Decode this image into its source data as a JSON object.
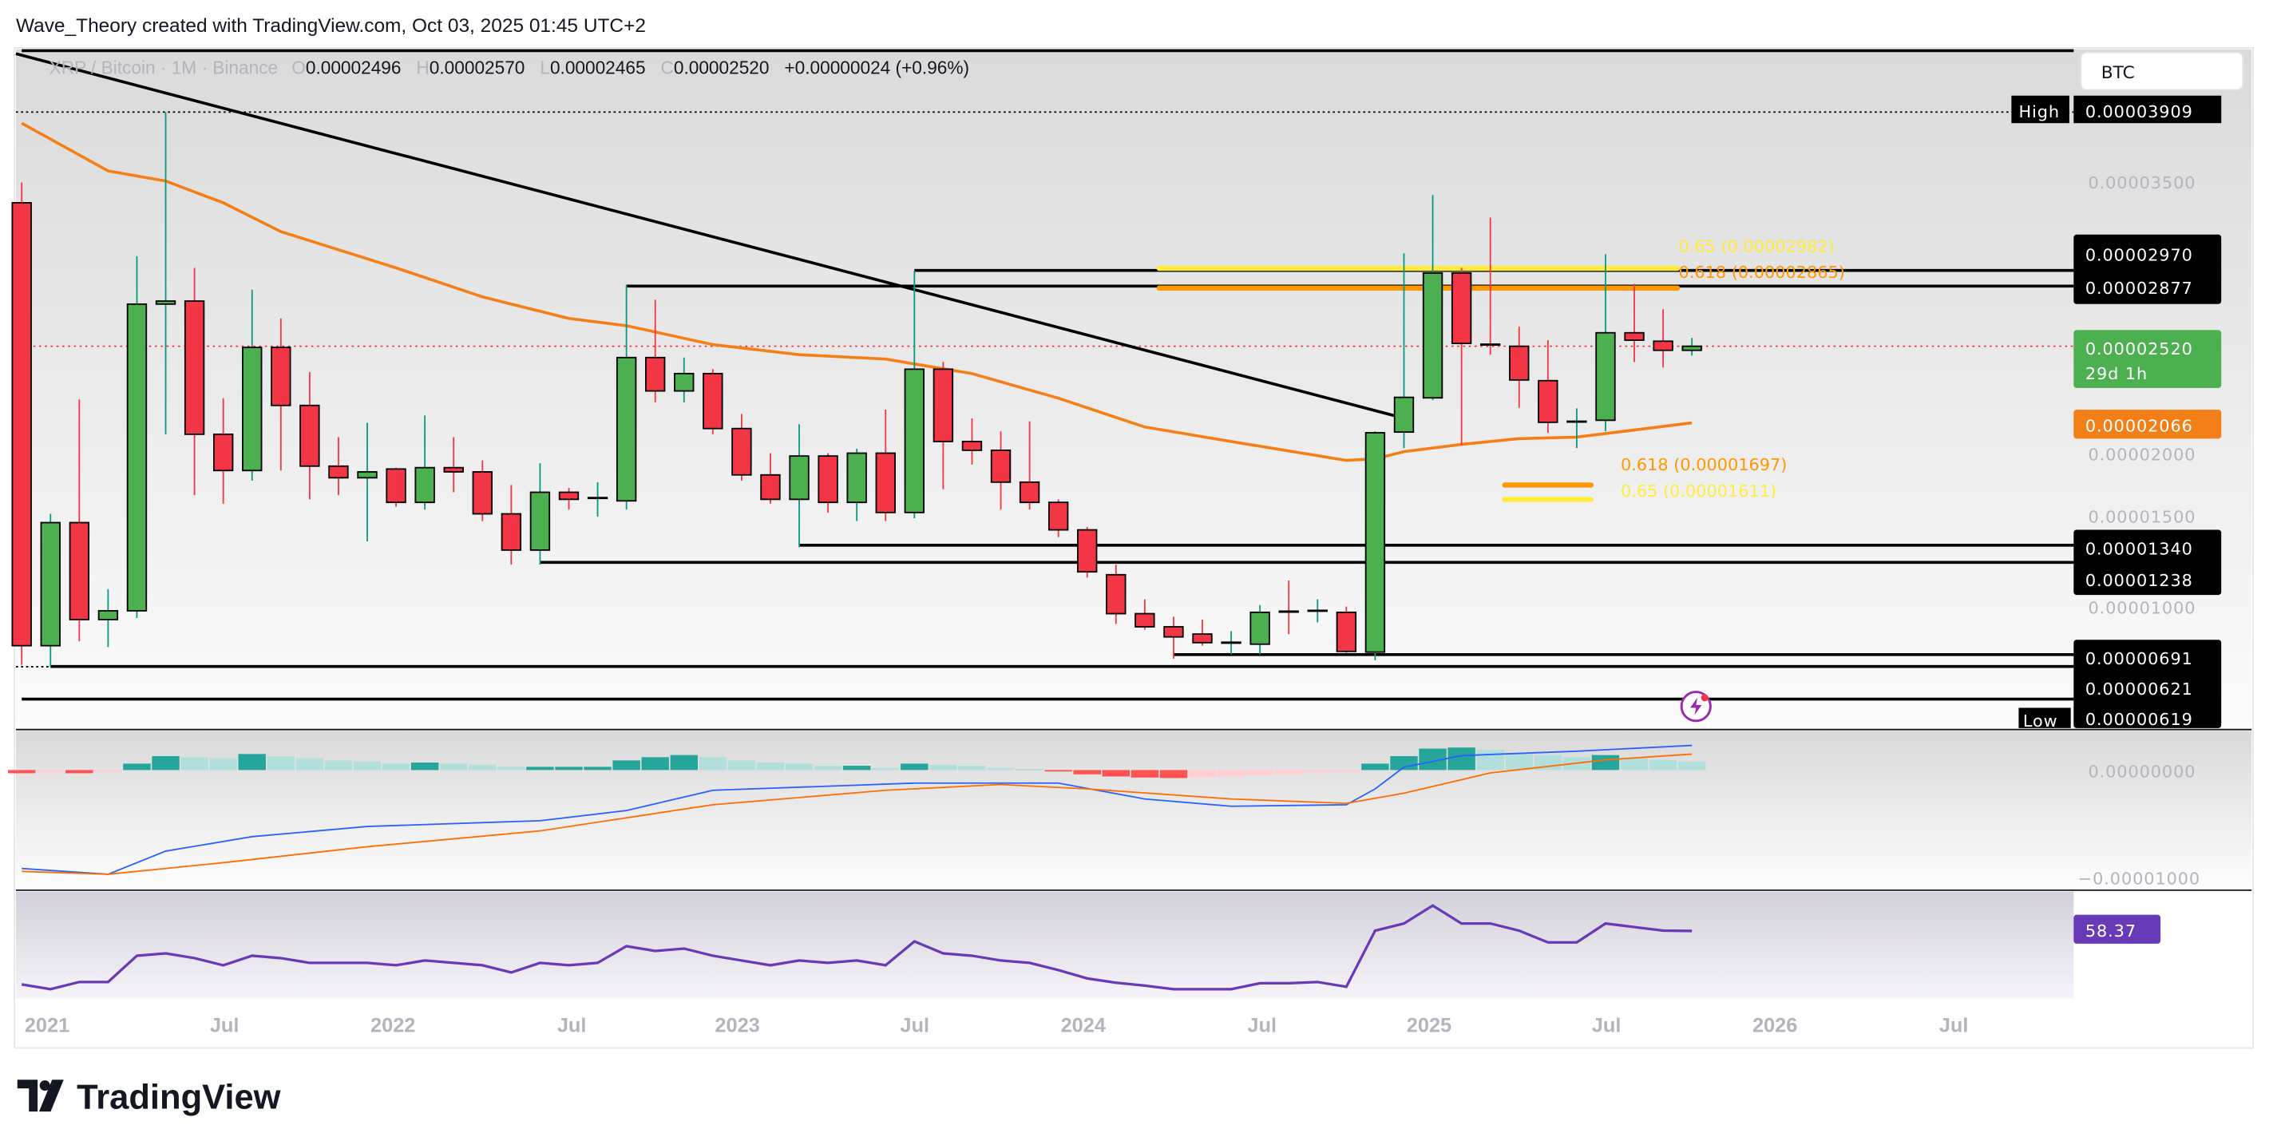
{
  "header": {
    "attribution": "Wave_Theory created with TradingView.com, Oct 03, 2025 01:45 UTC+2"
  },
  "legend": {
    "symbol": "XRP / Bitcoin · 1M · Binance",
    "open_label": "O",
    "open": "0.00002496",
    "high_label": "H",
    "high": "0.00002570",
    "low_label": "L",
    "low": "0.00002465",
    "close_label": "C",
    "close": "0.00002520",
    "change": "+0.00000024 (+0.96%)"
  },
  "currency_button": "BTC",
  "price_axis": {
    "ticks": [
      "0.00003500",
      "0.00002000",
      "0.00001500",
      "0.00001000"
    ],
    "high_label": "High",
    "high_value": "0.00003909",
    "low_label": "Low",
    "low_value": "0.00000619",
    "level_tags": [
      "0.00002970",
      "0.00002877",
      "0.00001340",
      "0.00001238",
      "0.00000691",
      "0.00000621"
    ],
    "last_price": "0.00002520",
    "countdown": "29d 1h",
    "ema_value": "0.00002066"
  },
  "macd_axis": {
    "ticks": [
      "0.00000000",
      "−0.00001000"
    ]
  },
  "rsi": {
    "value": "58.37"
  },
  "time_axis": [
    "2021",
    "Jul",
    "2022",
    "Jul",
    "2023",
    "Jul",
    "2024",
    "Jul",
    "2025",
    "Jul",
    "2026",
    "Jul"
  ],
  "fib_labels": {
    "upper_065": "0.65 (0.00002982)",
    "upper_0618": "0.618 (0.00002865)",
    "lower_0618": "0.618 (0.00001697)",
    "lower_065": "0.65 (0.00001611)"
  },
  "footer": {
    "brand": "TradingView"
  },
  "colors": {
    "up": "#4caf50",
    "down": "#f23645",
    "up_wick": "#089981",
    "down_wick": "#f23645",
    "ema": "#f57f17",
    "fib_yellow": "#ffeb3b",
    "fib_orange": "#ff9800",
    "macd": "#2962ff",
    "signal": "#ff6d00",
    "rsi": "#673ab7",
    "hist_up_strong": "#26a69a",
    "hist_up_weak": "#b2dfdb",
    "hist_down_strong": "#ff5252",
    "hist_down_weak": "#ffcdd2"
  },
  "chart_data": {
    "type": "candlestick",
    "interval": "1M",
    "price_range": [
      4e-06,
      4.25e-05
    ],
    "grid": false,
    "candles_columns": [
      "month",
      "open",
      "high",
      "low",
      "close"
    ],
    "candles": [
      [
        "2020-12",
        3.371e-05,
        3.491e-05,
        6.3e-06,
        7.44e-06
      ],
      [
        "2021-01",
        7.44e-06,
        1.526e-05,
        6.19e-06,
        1.474e-05
      ],
      [
        "2021-02",
        1.474e-05,
        2.204e-05,
        7.7e-06,
        8.99e-06
      ],
      [
        "2021-03",
        8.99e-06,
        1.079e-05,
        7.36e-06,
        9.51e-06
      ],
      [
        "2021-04",
        9.51e-06,
        3.054e-05,
        9.08e-06,
        2.77e-05
      ],
      [
        "2021-05",
        2.77e-05,
        3.909e-05,
        1.998e-05,
        2.788e-05
      ],
      [
        "2021-06",
        2.788e-05,
        2.985e-05,
        1.637e-05,
        1.998e-05
      ],
      [
        "2021-07",
        1.998e-05,
        2.212e-05,
        1.586e-05,
        1.783e-05
      ],
      [
        "2021-08",
        1.783e-05,
        2.856e-05,
        1.723e-05,
        2.513e-05
      ],
      [
        "2021-09",
        2.513e-05,
        2.685e-05,
        1.783e-05,
        2.169e-05
      ],
      [
        "2021-10",
        2.169e-05,
        2.367e-05,
        1.612e-05,
        1.809e-05
      ],
      [
        "2021-11",
        1.809e-05,
        1.981e-05,
        1.637e-05,
        1.74e-05
      ],
      [
        "2021-12",
        1.74e-05,
        2.066e-05,
        1.363e-05,
        1.775e-05
      ],
      [
        "2022-01",
        1.792e-05,
        1.8e-05,
        1.569e-05,
        1.594e-05
      ],
      [
        "2022-02",
        1.594e-05,
        2.109e-05,
        1.551e-05,
        1.8e-05
      ],
      [
        "2022-03",
        1.8e-05,
        1.981e-05,
        1.654e-05,
        1.775e-05
      ],
      [
        "2022-04",
        1.775e-05,
        1.843e-05,
        1.483e-05,
        1.526e-05
      ],
      [
        "2022-05",
        1.526e-05,
        1.697e-05,
        1.225e-05,
        1.311e-05
      ],
      [
        "2022-06",
        1.311e-05,
        1.826e-05,
        1.225e-05,
        1.654e-05
      ],
      [
        "2022-07",
        1.654e-05,
        1.68e-05,
        1.551e-05,
        1.612e-05
      ],
      [
        "2022-08",
        1.62e-05,
        1.714e-05,
        1.509e-05,
        1.62e-05
      ],
      [
        "2022-09",
        1.603e-05,
        2.882e-05,
        1.551e-05,
        2.453e-05
      ],
      [
        "2022-10",
        2.453e-05,
        2.796e-05,
        2.187e-05,
        2.255e-05
      ],
      [
        "2022-11",
        2.255e-05,
        2.453e-05,
        2.187e-05,
        2.358e-05
      ],
      [
        "2022-12",
        2.358e-05,
        2.384e-05,
        1.998e-05,
        2.032e-05
      ],
      [
        "2023-01",
        2.032e-05,
        2.118e-05,
        1.723e-05,
        1.757e-05
      ],
      [
        "2023-02",
        1.757e-05,
        1.886e-05,
        1.586e-05,
        1.612e-05
      ],
      [
        "2023-03",
        1.612e-05,
        2.058e-05,
        1.328e-05,
        1.869e-05
      ],
      [
        "2023-04",
        1.869e-05,
        1.886e-05,
        1.534e-05,
        1.594e-05
      ],
      [
        "2023-05",
        1.594e-05,
        1.912e-05,
        1.483e-05,
        1.886e-05
      ],
      [
        "2023-06",
        1.886e-05,
        2.144e-05,
        1.483e-05,
        1.534e-05
      ],
      [
        "2023-07",
        1.534e-05,
        2.968e-05,
        1.5e-05,
        2.384e-05
      ],
      [
        "2023-08",
        2.384e-05,
        2.427e-05,
        1.672e-05,
        1.955e-05
      ],
      [
        "2023-09",
        1.955e-05,
        2.092e-05,
        1.818e-05,
        1.903e-05
      ],
      [
        "2023-10",
        1.903e-05,
        2.015e-05,
        1.551e-05,
        1.714e-05
      ],
      [
        "2023-11",
        1.714e-05,
        2.075e-05,
        1.551e-05,
        1.594e-05
      ],
      [
        "2023-12",
        1.594e-05,
        1.612e-05,
        1.388e-05,
        1.431e-05
      ],
      [
        "2024-01",
        1.431e-05,
        1.448e-05,
        1.148e-05,
        1.182e-05
      ],
      [
        "2024-02",
        1.165e-05,
        1.225e-05,
        8.73e-06,
        9.34e-06
      ],
      [
        "2024-03",
        9.34e-06,
        1.019e-05,
        8.39e-06,
        8.56e-06
      ],
      [
        "2024-04",
        8.56e-06,
        9.16e-06,
        6.67e-06,
        7.96e-06
      ],
      [
        "2024-05",
        8.13e-06,
        8.99e-06,
        7.44e-06,
        7.62e-06
      ],
      [
        "2024-06",
        7.62e-06,
        8.3e-06,
        6.93e-06,
        7.62e-06
      ],
      [
        "2024-07",
        7.53e-06,
        9.85e-06,
        6.93e-06,
        9.42e-06
      ],
      [
        "2024-08",
        9.51e-06,
        1.131e-05,
        8.13e-06,
        9.46e-06
      ],
      [
        "2024-09",
        9.46e-06,
        1.019e-05,
        8.82e-06,
        9.51e-06
      ],
      [
        "2024-10",
        9.42e-06,
        9.76e-06,
        7.02e-06,
        7.1e-06
      ],
      [
        "2024-11",
        7.06e-06,
        2.015e-05,
        6.58e-06,
        2.007e-05
      ],
      [
        "2024-12",
        2.011e-05,
        3.071e-05,
        1.916e-05,
        2.217e-05
      ],
      [
        "2025-01",
        2.214e-05,
        3.417e-05,
        2.2e-05,
        2.954e-05
      ],
      [
        "2025-02",
        2.954e-05,
        2.985e-05,
        1.932e-05,
        2.537e-05
      ],
      [
        "2025-03",
        2.537e-05,
        3.283e-05,
        2.47e-05,
        2.53e-05
      ],
      [
        "2025-04",
        2.52e-05,
        2.636e-05,
        2.155e-05,
        2.32e-05
      ],
      [
        "2025-05",
        2.316e-05,
        2.556e-05,
        2.007e-05,
        2.069e-05
      ],
      [
        "2025-06",
        2.066e-05,
        2.152e-05,
        1.916e-05,
        2.073e-05
      ],
      [
        "2025-07",
        2.081e-05,
        3.066e-05,
        2.016e-05,
        2.6e-05
      ],
      [
        "2025-08",
        2.6e-05,
        2.89e-05,
        2.426e-05,
        2.556e-05
      ],
      [
        "2025-09",
        2.55e-05,
        2.74e-05,
        2.394e-05,
        2.496e-05
      ],
      [
        "2025-10",
        2.496e-05,
        2.57e-05,
        2.465e-05,
        2.52e-05
      ]
    ],
    "ema": [
      [
        "2020-12",
        3.843e-05
      ],
      [
        "2021-03",
        3.56e-05
      ],
      [
        "2021-05",
        3.5e-05
      ],
      [
        "2021-07",
        3.371e-05
      ],
      [
        "2021-09",
        3.2e-05
      ],
      [
        "2022-01",
        2.985e-05
      ],
      [
        "2022-04",
        2.813e-05
      ],
      [
        "2022-07",
        2.685e-05
      ],
      [
        "2022-09",
        2.642e-05
      ],
      [
        "2022-12",
        2.53e-05
      ],
      [
        "2023-03",
        2.47e-05
      ],
      [
        "2023-06",
        2.444e-05
      ],
      [
        "2023-09",
        2.358e-05
      ],
      [
        "2023-12",
        2.212e-05
      ],
      [
        "2024-03",
        2.041e-05
      ],
      [
        "2024-06",
        1.955e-05
      ],
      [
        "2024-10",
        1.843e-05
      ],
      [
        "2024-11",
        1.852e-05
      ],
      [
        "2024-12",
        1.895e-05
      ],
      [
        "2025-02",
        1.938e-05
      ],
      [
        "2025-04",
        1.972e-05
      ],
      [
        "2025-06",
        1.981e-05
      ],
      [
        "2025-10",
        2.066e-05
      ]
    ],
    "trendline": [
      [
        "2020-12",
        4.255e-05
      ],
      [
        "2024-11",
        2.109e-05
      ]
    ],
    "horizontal_levels": [
      {
        "price": 4.273e-05,
        "from": "2020-12"
      },
      {
        "price": 2.97e-05,
        "from": "2023-07"
      },
      {
        "price": 2.877e-05,
        "from": "2022-09"
      },
      {
        "price": 1.34e-05,
        "from": "2023-03"
      },
      {
        "price": 1.238e-05,
        "from": "2022-06"
      },
      {
        "price": 6.91e-06,
        "from": "2024-04"
      },
      {
        "price": 6.21e-06,
        "from": "2021-01"
      },
      {
        "price": 4.27e-06,
        "from": "2020-12"
      }
    ],
    "high": 3.909e-05,
    "low": 6.19e-06,
    "last_price": 2.52e-05,
    "fib_levels": [
      {
        "level": 0.65,
        "price": 2.982e-05,
        "from": "2024-04",
        "to": "2025-10",
        "color": "yellow"
      },
      {
        "level": 0.618,
        "price": 2.865e-05,
        "from": "2024-04",
        "to": "2025-10",
        "color": "orange"
      },
      {
        "level": 0.618,
        "price": 1.697e-05,
        "from": "2025-04",
        "to": "2025-07",
        "color": "orange"
      },
      {
        "level": 0.65,
        "price": 1.611e-05,
        "from": "2025-04",
        "to": "2025-07",
        "color": "yellow"
      }
    ],
    "macd": {
      "range": [
        -1.02e-05,
        3.6e-06
      ],
      "macd_line": [
        [
          "2020-12",
          -9.19e-06
        ],
        [
          "2021-03",
          -9.73e-06
        ],
        [
          "2021-05",
          -7.57e-06
        ],
        [
          "2021-08",
          -6.22e-06
        ],
        [
          "2021-12",
          -5.27e-06
        ],
        [
          "2022-06",
          -4.73e-06
        ],
        [
          "2022-09",
          -3.78e-06
        ],
        [
          "2022-12",
          -1.89e-06
        ],
        [
          "2023-07",
          -1.22e-06
        ],
        [
          "2023-12",
          -1.22e-06
        ],
        [
          "2024-03",
          -2.7e-06
        ],
        [
          "2024-06",
          -3.38e-06
        ],
        [
          "2024-10",
          -3.24e-06
        ],
        [
          "2024-11",
          -1.76e-06
        ],
        [
          "2024-12",
          2.7e-07
        ],
        [
          "2025-02",
          1.35e-06
        ],
        [
          "2025-06",
          1.76e-06
        ],
        [
          "2025-10",
          2.3e-06
        ]
      ],
      "signal_line": [
        [
          "2020-12",
          -9.46e-06
        ],
        [
          "2021-03",
          -9.73e-06
        ],
        [
          "2021-07",
          -8.65e-06
        ],
        [
          "2021-12",
          -7.16e-06
        ],
        [
          "2022-06",
          -5.68e-06
        ],
        [
          "2022-12",
          -3.24e-06
        ],
        [
          "2023-06",
          -1.89e-06
        ],
        [
          "2023-10",
          -1.35e-06
        ],
        [
          "2024-01",
          -1.76e-06
        ],
        [
          "2024-06",
          -2.7e-06
        ],
        [
          "2024-10",
          -3.11e-06
        ],
        [
          "2024-12",
          -2.16e-06
        ],
        [
          "2025-03",
          -2.7e-07
        ],
        [
          "2025-07",
          9.5e-07
        ],
        [
          "2025-10",
          1.49e-06
        ]
      ],
      "histogram": [
        -3e-07,
        -2.5e-07,
        -3e-07,
        -2e-07,
        6e-07,
        1.3e-06,
        1.2e-06,
        1.1e-06,
        1.5e-06,
        1.3e-06,
        1.1e-06,
        9e-07,
        8e-07,
        6e-07,
        7e-07,
        6e-07,
        5e-07,
        3e-07,
        3e-07,
        3e-07,
        3e-07,
        9e-07,
        1.2e-06,
        1.4e-06,
        1.2e-06,
        9e-07,
        7e-07,
        6e-07,
        4e-07,
        4e-07,
        2e-07,
        6e-07,
        5e-07,
        4e-07,
        2e-07,
        1e-07,
        -1e-07,
        -4e-07,
        -6e-07,
        -7e-07,
        -7.5e-07,
        -7e-07,
        -6e-07,
        -4.5e-07,
        -3.5e-07,
        -2.5e-07,
        -2e-07,
        6e-07,
        1.3e-06,
        2e-06,
        2.1e-06,
        1.9e-06,
        1.6e-06,
        1.4e-06,
        1.2e-06,
        1.4e-06,
        1.1e-06,
        9.5e-07,
        8e-07
      ]
    },
    "rsi_series": [
      36,
      34,
      37,
      37,
      48,
      49,
      47,
      44,
      48,
      47,
      45,
      45,
      45,
      44,
      46,
      45,
      44,
      41,
      45,
      44,
      45,
      52,
      50,
      51,
      48,
      46,
      44,
      46,
      45,
      46,
      44,
      54,
      49,
      48,
      46,
      45,
      42,
      38.5,
      36.7,
      35.5,
      34,
      34,
      34,
      36.5,
      36.5,
      37,
      35,
      58.5,
      61.5,
      69,
      61.5,
      61.5,
      58.5,
      53.6,
      53.6,
      61.5,
      60,
      58.5,
      58.37
    ]
  }
}
